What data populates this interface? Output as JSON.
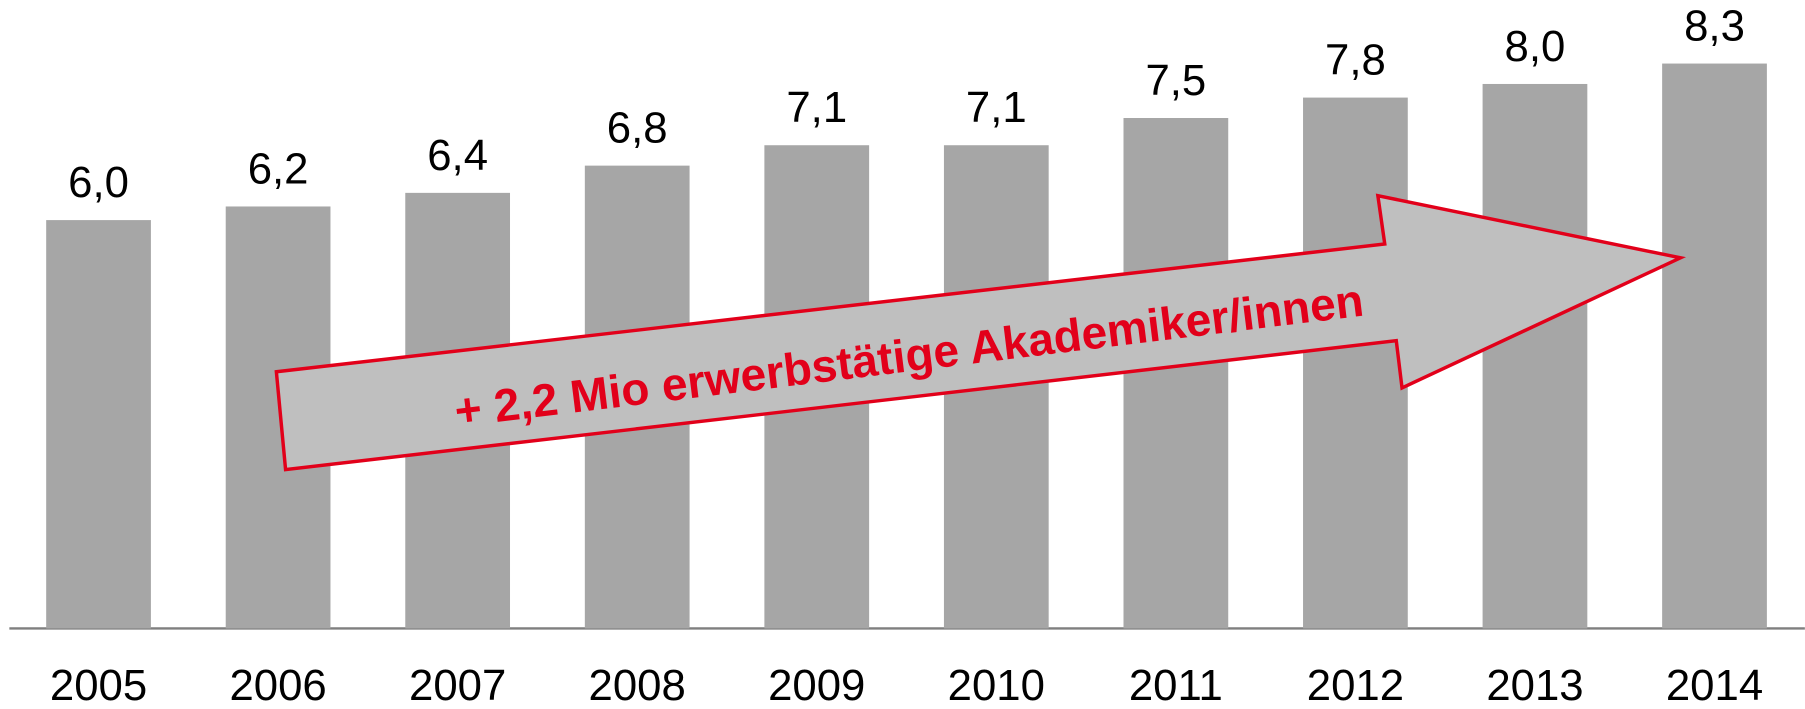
{
  "chart_data": {
    "type": "bar",
    "categories": [
      "2005",
      "2006",
      "2007",
      "2008",
      "2009",
      "2010",
      "2011",
      "2012",
      "2013",
      "2014"
    ],
    "values": [
      6.0,
      6.2,
      6.4,
      6.8,
      7.1,
      7.1,
      7.5,
      7.8,
      8.0,
      8.3
    ],
    "value_labels": [
      "6,0",
      "6,2",
      "6,4",
      "6,8",
      "7,1",
      "7,1",
      "7,5",
      "7,8",
      "8,0",
      "8,3"
    ],
    "color": "#a6a6a6",
    "ylim": [
      0,
      9.2
    ],
    "annotation": "+ 2,2 Mio erwerbstätige Akademiker/innen"
  }
}
